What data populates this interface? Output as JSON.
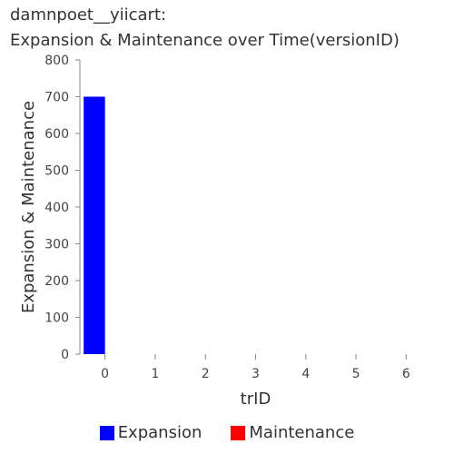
{
  "chart_data": {
    "type": "bar",
    "title_line1": "damnpoet__yiicart:",
    "title_line2": "Expansion & Maintenance over Time(versionID)",
    "xlabel": "trID",
    "ylabel": "Expansion & Maintenance",
    "categories": [
      "0",
      "1",
      "2",
      "3",
      "4",
      "5",
      "6"
    ],
    "ylim": [
      0,
      800
    ],
    "yticks": [
      0,
      100,
      200,
      300,
      400,
      500,
      600,
      700,
      800
    ],
    "series": [
      {
        "name": "Expansion",
        "color": "#0000ff",
        "values": [
          700,
          0,
          0,
          0,
          0,
          0,
          0
        ]
      },
      {
        "name": "Maintenance",
        "color": "#ff0000",
        "values": [
          0,
          0,
          0,
          0,
          0,
          0,
          0
        ]
      }
    ],
    "grid": false,
    "legend_position": "bottom"
  }
}
